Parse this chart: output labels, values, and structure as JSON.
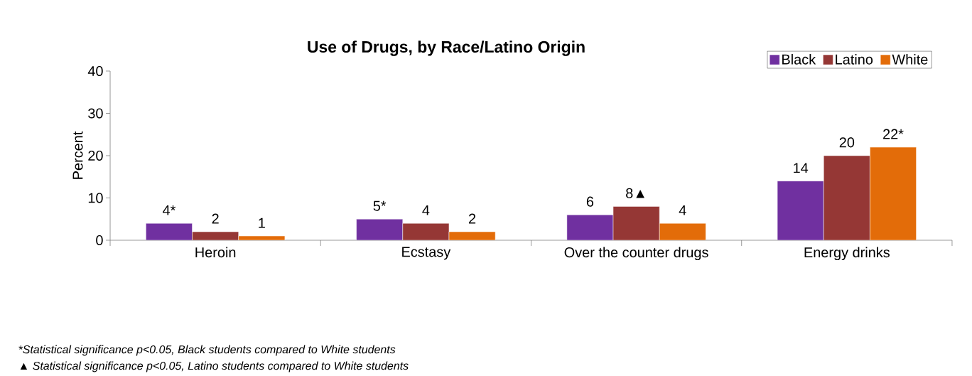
{
  "chart_data": {
    "type": "bar",
    "title": "Use of Drugs, by Race/Latino Origin",
    "ylabel": "Percent",
    "categories": [
      "Heroin",
      "Ecstasy",
      "Over the counter drugs",
      "Energy drinks"
    ],
    "series": [
      {
        "name": "Black",
        "color": "#7030a0",
        "values": [
          4,
          5,
          6,
          14
        ],
        "value_labels": [
          "4*",
          "5*",
          "6",
          "14"
        ]
      },
      {
        "name": "Latino",
        "color": "#953735",
        "values": [
          2,
          4,
          8,
          20
        ],
        "value_labels": [
          "2",
          "4",
          "8▲",
          "20"
        ]
      },
      {
        "name": "White",
        "color": "#e36c09",
        "values": [
          1,
          2,
          4,
          22
        ],
        "value_labels": [
          "1",
          "2",
          "4",
          "22*"
        ]
      }
    ],
    "ylim": [
      0,
      40
    ],
    "yticks": [
      0,
      10,
      20,
      30,
      40
    ],
    "grid": false,
    "legend": "top right",
    "annotations": [
      "*Statistical significance p<0.05, Black students compared to White students",
      "▲ Statistical significance p<0.05, Latino students compared to White students"
    ]
  }
}
